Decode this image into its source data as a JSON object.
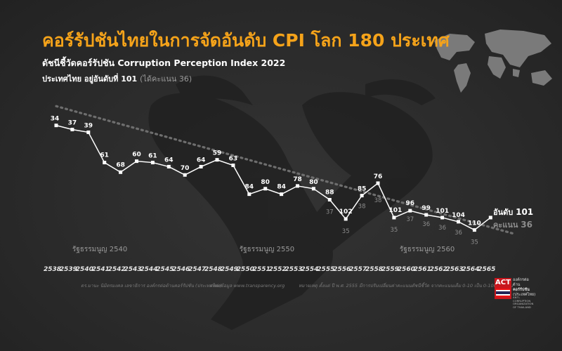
{
  "header": {
    "title": "คอร์รัปชันไทยในการจัดอันดับ CPI โลก 180 ประเทศ",
    "subtitle": "ดัชนีชี้วัดคอร์รัปชัน Corruption Perception Index 2022",
    "rank_prefix": "ประเทศไทย อยู่อันดับที่  101",
    "rank_score": "(ได้คะแนน 36)"
  },
  "chart_data": {
    "type": "line",
    "x": [
      "2538",
      "2539",
      "2540",
      "2541",
      "2542",
      "2543",
      "2544",
      "2545",
      "2546",
      "2547",
      "2548",
      "2549",
      "2550",
      "2551",
      "2552",
      "2553",
      "2554",
      "2555",
      "2556",
      "2557",
      "2558",
      "2559",
      "2560",
      "2561",
      "2562",
      "2563",
      "2564",
      "2565"
    ],
    "series": [
      {
        "values": [
          34,
          37,
          39,
          61,
          68,
          60,
          61,
          64,
          70,
          64,
          59,
          63,
          84,
          80,
          84,
          78,
          80,
          88,
          102,
          85,
          76,
          101,
          96,
          99,
          101,
          104,
          110,
          101
        ]
      },
      {
        "values": [
          null,
          null,
          null,
          null,
          null,
          null,
          null,
          null,
          null,
          null,
          null,
          null,
          null,
          null,
          null,
          null,
          null,
          37,
          35,
          38,
          38,
          35,
          37,
          36,
          36,
          36,
          35,
          36
        ]
      }
    ],
    "annotations": [
      "รัฐธรรมนูญ 2540",
      "รัฐธรรมนูญ 2550",
      "รัฐธรรมนูญ 2560"
    ],
    "final_rank_label": "อันดับ",
    "final_rank_value": "101",
    "final_score_label": "คะแนน",
    "final_score_value": "36",
    "trend_line": true,
    "grid": false
  },
  "footer": {
    "note1": "ดร.มานะ  นิมิตรมงคล เลขาธิการ องค์กรต่อต้านคอร์รัปชัน (ประเทศไทย)",
    "note2": "แหล่งข้อมูล www.transparency.org",
    "note3": "หมายเหตุ ตั้งแต่ ปี พ.ศ. 2555 มีการปรับเปลี่ยนค่าคะแนนดัชนีชี้วัด จากคะแนนเต็ม 0-10 เป็น 0-100 คะแนน"
  },
  "logo": {
    "act": "ACT",
    "line1": "องค์กรต่อต้าน",
    "line2": "คอร์รัปชัน",
    "line3": "(ประเทศไทย)",
    "small": "ANTI-CORRUPTION ORGANIZATION OF THAILAND"
  },
  "colors": {
    "accent": "#f5a31a",
    "line": "#ffffff",
    "score": "#8c8c8c",
    "trend": "#6e6e6e",
    "logo_red": "#c8171e"
  }
}
